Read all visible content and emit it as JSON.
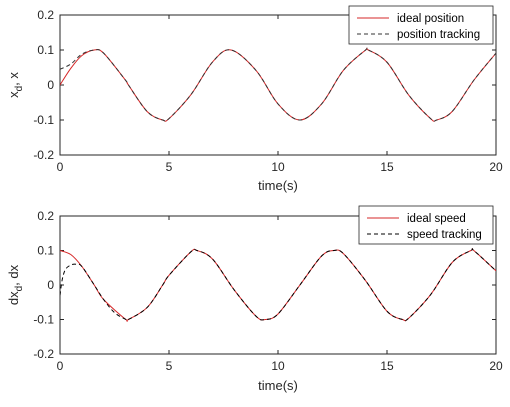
{
  "chart_data": [
    {
      "type": "line",
      "xlabel": "time(s)",
      "ylabel": "x_d, x",
      "xlim": [
        0,
        20
      ],
      "ylim": [
        -0.2,
        0.2
      ],
      "xticks": [
        "0",
        "5",
        "10",
        "15",
        "20"
      ],
      "yticks": [
        "0.2",
        "0.1",
        "0",
        "-0.1",
        "-0.2"
      ],
      "grid": false,
      "legend_position": "top-right",
      "series": [
        {
          "name": "ideal position",
          "color": "#d62728",
          "style": "solid",
          "x": [
            0,
            0.5,
            1,
            1.57,
            2,
            3,
            3.14,
            4,
            4.71,
            5,
            6,
            7,
            7.85,
            9,
            10,
            11,
            12,
            13,
            14,
            14.14,
            15,
            16,
            17,
            17.28,
            18,
            19,
            20
          ],
          "y": [
            0,
            0.048,
            0.084,
            0.1,
            0.091,
            0.014,
            0,
            -0.076,
            -0.1,
            -0.096,
            -0.028,
            0.066,
            0.1,
            0.041,
            -0.054,
            -0.1,
            -0.054,
            0.042,
            0.099,
            0.1,
            0.065,
            -0.029,
            -0.096,
            -0.1,
            -0.075,
            0.015,
            0.091
          ]
        },
        {
          "name": "position tracking",
          "color": "#333333",
          "style": "dashed",
          "x": [
            0,
            0.5,
            1,
            1.57,
            2,
            3,
            3.14,
            4,
            4.71,
            5,
            6,
            7,
            7.85,
            9,
            10,
            11,
            12,
            13,
            14,
            14.14,
            15,
            16,
            17,
            17.28,
            18,
            19,
            20
          ],
          "y": [
            0.045,
            0.06,
            0.088,
            0.1,
            0.091,
            0.014,
            0,
            -0.076,
            -0.1,
            -0.096,
            -0.028,
            0.066,
            0.1,
            0.041,
            -0.054,
            -0.1,
            -0.054,
            0.042,
            0.099,
            0.1,
            0.065,
            -0.029,
            -0.096,
            -0.1,
            -0.075,
            0.015,
            0.091
          ]
        }
      ]
    },
    {
      "type": "line",
      "xlabel": "time(s)",
      "ylabel": "dx_d, dx",
      "xlim": [
        0,
        20
      ],
      "ylim": [
        -0.2,
        0.2
      ],
      "xticks": [
        "0",
        "5",
        "10",
        "15",
        "20"
      ],
      "yticks": [
        "0.2",
        "0.1",
        "0",
        "-0.1",
        "-0.2"
      ],
      "grid": false,
      "legend_position": "top-right",
      "series": [
        {
          "name": "ideal speed",
          "color": "#d62728",
          "style": "solid",
          "x": [
            0,
            0.5,
            1,
            1.57,
            2,
            3,
            3.14,
            4,
            4.71,
            5,
            6,
            6.28,
            7,
            8,
            9,
            9.42,
            10,
            11,
            12,
            12.57,
            13,
            14,
            15,
            15.71,
            16,
            17,
            18,
            18.85,
            19,
            20
          ],
          "y": [
            0.1,
            0.088,
            0.054,
            0,
            -0.042,
            -0.099,
            -0.1,
            -0.065,
            0,
            0.028,
            0.096,
            0.1,
            0.075,
            -0.015,
            -0.091,
            -0.1,
            -0.084,
            -0.0004,
            0.084,
            0.1,
            0.091,
            0.014,
            -0.076,
            -0.1,
            -0.096,
            -0.028,
            0.066,
            0.1,
            0.099,
            0.041
          ]
        },
        {
          "name": "speed tracking",
          "color": "#000000",
          "style": "dashed",
          "x": [
            0,
            0.1,
            0.25,
            0.5,
            0.75,
            1,
            1.57,
            2,
            2.5,
            3,
            3.14,
            4,
            4.71,
            5,
            6,
            6.28,
            7,
            8,
            9,
            9.42,
            10,
            11,
            12,
            12.57,
            13,
            14,
            15,
            15.71,
            16,
            17,
            18,
            18.85,
            19,
            20
          ],
          "y": [
            -0.03,
            0.015,
            0.045,
            0.058,
            0.06,
            0.054,
            0,
            -0.042,
            -0.08,
            -0.099,
            -0.1,
            -0.065,
            0,
            0.028,
            0.096,
            0.1,
            0.075,
            -0.015,
            -0.091,
            -0.1,
            -0.084,
            -0.0004,
            0.084,
            0.1,
            0.091,
            0.014,
            -0.076,
            -0.1,
            -0.096,
            -0.028,
            0.066,
            0.1,
            0.099,
            0.041
          ]
        }
      ]
    }
  ]
}
